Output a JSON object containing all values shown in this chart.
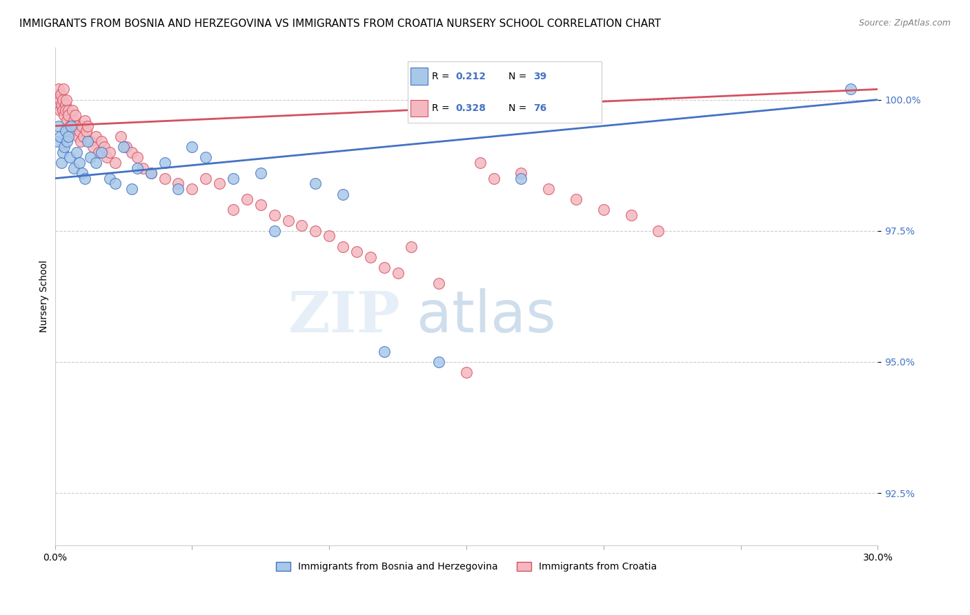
{
  "title": "IMMIGRANTS FROM BOSNIA AND HERZEGOVINA VS IMMIGRANTS FROM CROATIA NURSERY SCHOOL CORRELATION CHART",
  "source": "Source: ZipAtlas.com",
  "ylabel": "Nursery School",
  "ytick_values": [
    92.5,
    95.0,
    97.5,
    100.0
  ],
  "xmin": 0.0,
  "xmax": 30.0,
  "ymin": 91.5,
  "ymax": 101.0,
  "legend_blue_r": "0.212",
  "legend_blue_n": "39",
  "legend_pink_r": "0.328",
  "legend_pink_n": "76",
  "legend_label_blue": "Immigrants from Bosnia and Herzegovina",
  "legend_label_pink": "Immigrants from Croatia",
  "blue_color": "#a8c8e8",
  "pink_color": "#f4b8c0",
  "trendline_blue": "#4472c4",
  "trendline_pink": "#d45060",
  "blue_r_color": "#4472c4",
  "blue_n_color": "#4472c4",
  "pink_r_color": "#4472c4",
  "pink_n_color": "#4472c4",
  "blue_scatter_x": [
    0.1,
    0.15,
    0.2,
    0.25,
    0.3,
    0.35,
    0.4,
    0.45,
    0.5,
    0.55,
    0.6,
    0.7,
    0.8,
    0.9,
    1.0,
    1.1,
    1.2,
    1.3,
    1.5,
    1.7,
    2.0,
    2.2,
    2.5,
    2.8,
    3.0,
    3.5,
    4.0,
    4.5,
    5.0,
    5.5,
    6.5,
    7.5,
    8.0,
    9.5,
    10.5,
    12.0,
    14.0,
    17.0,
    29.0
  ],
  "blue_scatter_y": [
    99.2,
    99.5,
    99.3,
    98.8,
    99.0,
    99.1,
    99.4,
    99.2,
    99.3,
    98.9,
    99.5,
    98.7,
    99.0,
    98.8,
    98.6,
    98.5,
    99.2,
    98.9,
    98.8,
    99.0,
    98.5,
    98.4,
    99.1,
    98.3,
    98.7,
    98.6,
    98.8,
    98.3,
    99.1,
    98.9,
    98.5,
    98.6,
    97.5,
    98.4,
    98.2,
    95.2,
    95.0,
    98.5,
    100.2
  ],
  "pink_scatter_x": [
    0.05,
    0.1,
    0.12,
    0.15,
    0.18,
    0.2,
    0.22,
    0.25,
    0.28,
    0.3,
    0.32,
    0.35,
    0.38,
    0.4,
    0.42,
    0.45,
    0.48,
    0.5,
    0.55,
    0.6,
    0.65,
    0.7,
    0.75,
    0.8,
    0.85,
    0.9,
    0.95,
    1.0,
    1.05,
    1.1,
    1.15,
    1.2,
    1.3,
    1.4,
    1.5,
    1.6,
    1.7,
    1.8,
    1.9,
    2.0,
    2.2,
    2.4,
    2.6,
    2.8,
    3.0,
    3.2,
    3.5,
    4.0,
    4.5,
    5.0,
    5.5,
    6.0,
    6.5,
    7.0,
    7.5,
    8.0,
    8.5,
    9.0,
    9.5,
    10.0,
    10.5,
    11.0,
    11.5,
    12.0,
    12.5,
    13.0,
    14.0,
    15.0,
    15.5,
    16.0,
    17.0,
    18.0,
    19.0,
    20.0,
    21.0,
    22.0
  ],
  "pink_scatter_y": [
    100.1,
    100.0,
    99.9,
    100.2,
    100.0,
    99.8,
    100.1,
    99.9,
    100.0,
    99.8,
    100.2,
    99.7,
    99.9,
    99.8,
    100.0,
    99.6,
    99.8,
    99.7,
    99.5,
    99.4,
    99.8,
    99.6,
    99.7,
    99.5,
    99.3,
    99.4,
    99.2,
    99.5,
    99.3,
    99.6,
    99.4,
    99.5,
    99.2,
    99.1,
    99.3,
    99.0,
    99.2,
    99.1,
    98.9,
    99.0,
    98.8,
    99.3,
    99.1,
    99.0,
    98.9,
    98.7,
    98.6,
    98.5,
    98.4,
    98.3,
    98.5,
    98.4,
    97.9,
    98.1,
    98.0,
    97.8,
    97.7,
    97.6,
    97.5,
    97.4,
    97.2,
    97.1,
    97.0,
    96.8,
    96.7,
    97.2,
    96.5,
    94.8,
    98.8,
    98.5,
    98.6,
    98.3,
    98.1,
    97.9,
    97.8,
    97.5
  ],
  "blue_trend_x0": 0.0,
  "blue_trend_y0": 98.5,
  "blue_trend_x1": 30.0,
  "blue_trend_y1": 100.0,
  "pink_trend_x0": 0.0,
  "pink_trend_y0": 99.5,
  "pink_trend_x1": 30.0,
  "pink_trend_y1": 100.2,
  "watermark_zip": "ZIP",
  "watermark_atlas": "atlas",
  "title_fontsize": 11,
  "axis_label_fontsize": 10,
  "tick_fontsize": 10,
  "source_fontsize": 9
}
